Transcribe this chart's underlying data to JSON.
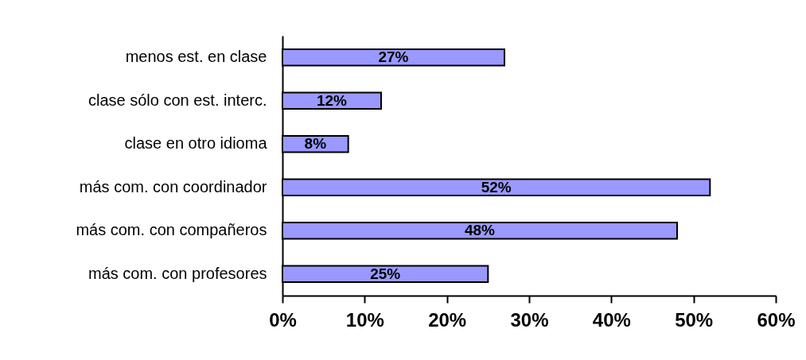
{
  "chart_data": {
    "type": "bar",
    "orientation": "horizontal",
    "categories": [
      "menos est. en clase",
      "clase sólo con est. interc.",
      "clase en otro idioma",
      "más com. con coordinador",
      "más com. con compañeros",
      "más com. con profesores"
    ],
    "values": [
      27,
      12,
      8,
      52,
      48,
      25
    ],
    "color": "#9999ff",
    "value_labels": [
      "27%",
      "12%",
      "8%",
      "52%",
      "48%",
      "25%"
    ],
    "xlim": [
      0,
      60
    ],
    "xticks": [
      {
        "value": 0,
        "label": "0%"
      },
      {
        "value": 10,
        "label": "10%"
      },
      {
        "value": 20,
        "label": "20%"
      },
      {
        "value": 30,
        "label": "30%"
      },
      {
        "value": 40,
        "label": "40%"
      },
      {
        "value": 50,
        "label": "50%"
      },
      {
        "value": 60,
        "label": "60%"
      }
    ]
  }
}
